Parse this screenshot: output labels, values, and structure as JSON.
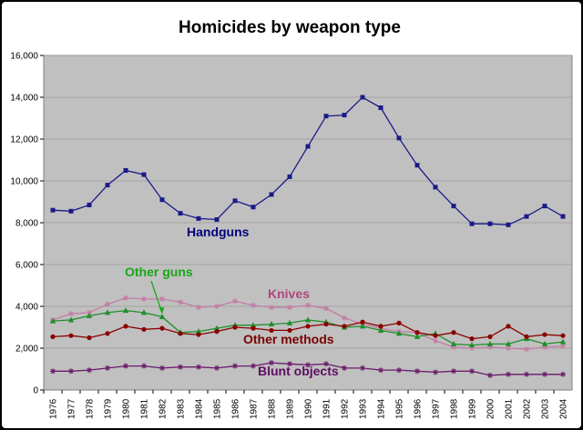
{
  "chart_data": {
    "type": "line",
    "title": "Homicides by weapon type",
    "xlabel": "",
    "ylabel": "",
    "ylim": [
      0,
      16000
    ],
    "yticks": [
      0,
      2000,
      4000,
      6000,
      8000,
      10000,
      12000,
      14000,
      16000
    ],
    "ytick_labels": [
      "0",
      "2,000",
      "4,000",
      "6,000",
      "8,000",
      "10,000",
      "12,000",
      "14,000",
      "16,000"
    ],
    "grid": true,
    "legend": "inline labels",
    "x": [
      "1976",
      "1977",
      "1978",
      "1979",
      "1980",
      "1981",
      "1982",
      "1983",
      "1984",
      "1985",
      "1986",
      "1987",
      "1988",
      "1989",
      "1990",
      "1991",
      "1992",
      "1993",
      "1994",
      "1995",
      "1996",
      "1997",
      "1998",
      "1999",
      "2000",
      "2001",
      "2002",
      "2003",
      "2004"
    ],
    "series": [
      {
        "name": "Handguns",
        "color": "#1a1a8a",
        "label_color": "#00007f",
        "marker": "square",
        "values": [
          8600,
          8550,
          8850,
          9800,
          10500,
          10300,
          9100,
          8450,
          8200,
          8150,
          9050,
          8750,
          9350,
          10200,
          11650,
          13100,
          13150,
          14000,
          13500,
          12050,
          10750,
          9700,
          8800,
          7950,
          7950,
          7900,
          8300,
          8800,
          8300
        ]
      },
      {
        "name": "Knives",
        "color": "#c47ca6",
        "label_color": "#b0487e",
        "marker": "star",
        "values": [
          3350,
          3650,
          3700,
          4100,
          4400,
          4350,
          4350,
          4200,
          3950,
          4000,
          4250,
          4050,
          3950,
          3950,
          4050,
          3900,
          3450,
          3150,
          2950,
          2800,
          2750,
          2350,
          2050,
          2000,
          2050,
          2000,
          1950,
          2050,
          2100
        ]
      },
      {
        "name": "Other guns",
        "color": "#1f8f2a",
        "label_color": "#18a818",
        "marker": "triangle",
        "values": [
          3300,
          3350,
          3550,
          3700,
          3800,
          3700,
          3500,
          2750,
          2800,
          2950,
          3100,
          3100,
          3150,
          3200,
          3350,
          3250,
          3000,
          3050,
          2850,
          2700,
          2550,
          2700,
          2200,
          2150,
          2200,
          2200,
          2450,
          2200,
          2300
        ]
      },
      {
        "name": "Other methods",
        "color": "#8b0000",
        "label_color": "#7a0000",
        "marker": "circle",
        "values": [
          2550,
          2600,
          2500,
          2700,
          3050,
          2900,
          2950,
          2700,
          2650,
          2800,
          3000,
          2950,
          2850,
          2850,
          3050,
          3150,
          3050,
          3250,
          3050,
          3200,
          2750,
          2600,
          2750,
          2450,
          2550,
          3050,
          2550,
          2650,
          2600
        ]
      },
      {
        "name": "Blunt objects",
        "color": "#6a1a6a",
        "label_color": "#5c0f60",
        "marker": "star",
        "values": [
          900,
          900,
          950,
          1050,
          1150,
          1150,
          1050,
          1100,
          1100,
          1050,
          1150,
          1150,
          1300,
          1250,
          1200,
          1250,
          1050,
          1050,
          950,
          950,
          900,
          850,
          900,
          900,
          700,
          750,
          750,
          750,
          750
        ]
      }
    ]
  }
}
